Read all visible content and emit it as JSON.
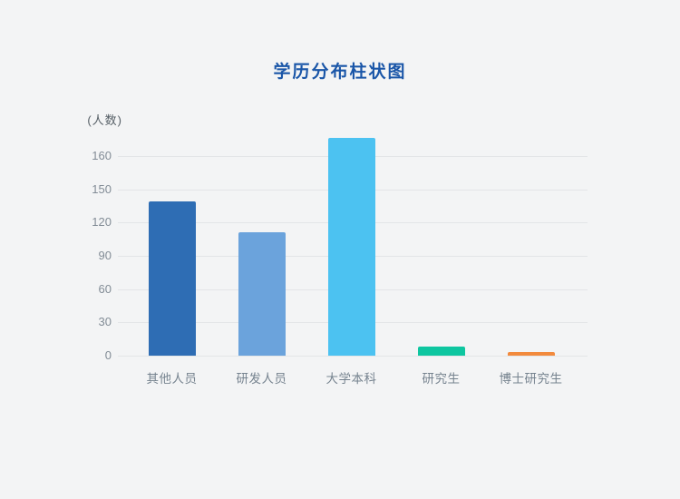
{
  "chart_data": {
    "type": "bar",
    "title": "学历分布柱状图",
    "ylabel": "(人数)",
    "xlabel": "",
    "categories": [
      "其他人员",
      "研发人员",
      "大学本科",
      "研究生",
      "博士研究生"
    ],
    "values": [
      139,
      111,
      176,
      8,
      3
    ],
    "bar_colors": [
      "#2e6db4",
      "#6ba3dc",
      "#4cc2f1",
      "#0ec6a0",
      "#f28a3d"
    ],
    "yticks": [
      0,
      30,
      60,
      90,
      120,
      150,
      160
    ],
    "grid": true,
    "legend": "none"
  },
  "colors": {
    "background": "#f3f4f5",
    "title": "#1a56a8",
    "tick_text": "#828c96",
    "category_text": "#76838f",
    "unit_text": "#565f66",
    "gridline": "#e3e5e7"
  }
}
